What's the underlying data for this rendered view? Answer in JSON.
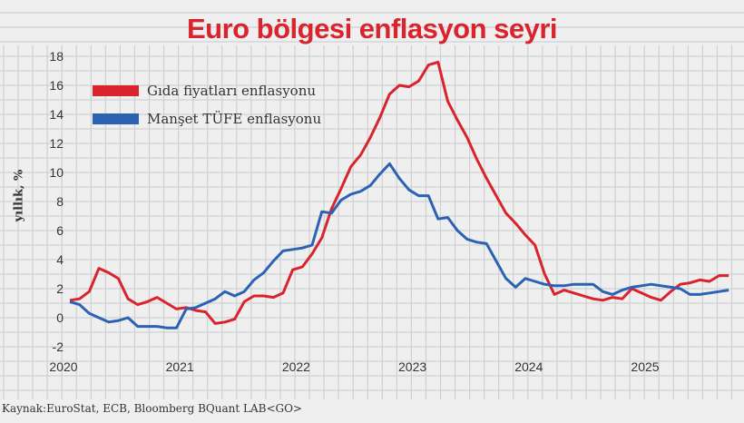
{
  "chart_data": {
    "type": "line",
    "title": "Euro bölgesi enflasyon seyri",
    "ylabel": "yıllık, %",
    "ylim": [
      -2,
      18
    ],
    "yticks": [
      "18",
      "16",
      "14",
      "12",
      "10",
      "8",
      "6",
      "4",
      "2",
      "0",
      "-2"
    ],
    "xticks": [
      "2020",
      "2021",
      "2022",
      "2023",
      "2024",
      "2025"
    ],
    "x_start": "2020-01",
    "x_frequency": "monthly",
    "grid": true,
    "legend_position": "top-left",
    "series": [
      {
        "name": "Gıda fiyatları enflasyonu",
        "color": "#d9232d",
        "values": [
          1.2,
          1.3,
          1.8,
          3.4,
          3.1,
          2.7,
          1.3,
          0.9,
          1.1,
          1.4,
          1.0,
          0.6,
          0.7,
          0.5,
          0.4,
          -0.4,
          -0.3,
          -0.1,
          1.1,
          1.5,
          1.5,
          1.4,
          1.7,
          3.3,
          3.5,
          4.4,
          5.5,
          7.5,
          8.9,
          10.4,
          11.2,
          12.4,
          13.8,
          15.4,
          16.0,
          15.9,
          16.3,
          17.4,
          17.6,
          14.9,
          13.6,
          12.4,
          10.9,
          9.6,
          8.4,
          7.2,
          6.5,
          5.7,
          5.0,
          3.0,
          1.6,
          1.9,
          1.7,
          1.5,
          1.3,
          1.2,
          1.4,
          1.3,
          2.0,
          1.7,
          1.4,
          1.2,
          1.8,
          2.3,
          2.4,
          2.6,
          2.5,
          2.9,
          2.9
        ]
      },
      {
        "name": "Manşet TÜFE enflasyonu",
        "color": "#2b62b3",
        "values": [
          1.1,
          0.9,
          0.3,
          0.0,
          -0.3,
          -0.2,
          0.0,
          -0.6,
          -0.6,
          -0.6,
          -0.7,
          -0.7,
          0.6,
          0.7,
          1.0,
          1.3,
          1.8,
          1.5,
          1.8,
          2.6,
          3.1,
          3.9,
          4.6,
          4.7,
          4.8,
          5.0,
          7.3,
          7.2,
          8.1,
          8.5,
          8.7,
          9.1,
          9.9,
          10.6,
          9.6,
          8.8,
          8.4,
          8.4,
          6.8,
          6.9,
          6.0,
          5.4,
          5.2,
          5.1,
          3.9,
          2.7,
          2.1,
          2.7,
          2.5,
          2.3,
          2.2,
          2.2,
          2.3,
          2.3,
          2.3,
          1.8,
          1.6,
          1.9,
          2.1,
          2.2,
          2.3,
          2.2,
          2.1,
          2.0,
          1.6,
          1.6,
          1.7,
          1.8,
          1.9
        ]
      }
    ]
  },
  "source": "Kaynak:EuroStat, ECB, Bloomberg BQuant LAB<GO>"
}
